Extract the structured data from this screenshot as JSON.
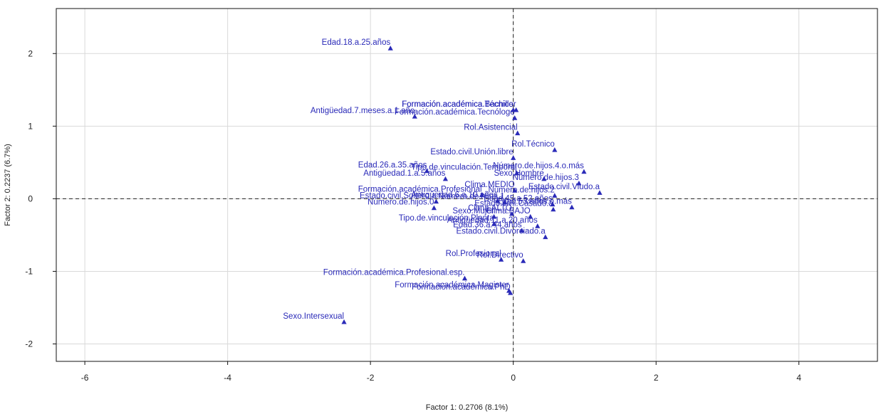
{
  "chart_data": {
    "type": "scatter",
    "xlabel": "Factor 1: 0.2706 (8.1%)",
    "ylabel": "Factor 2: 0.2237 (6.7%)",
    "xlim": [
      -6.4,
      5.1
    ],
    "ylim": [
      -2.24,
      2.62
    ],
    "xticks": [
      -6,
      -4,
      -2,
      0,
      2,
      4
    ],
    "yticks": [
      -2,
      -1,
      0,
      1,
      2
    ],
    "grid": true,
    "reference_lines": {
      "x": 0,
      "y": 0,
      "style": "dashed"
    },
    "marker": "triangle",
    "color": "#2a2ab8",
    "points": [
      {
        "label": "Edad.18.a.25.años",
        "x": -1.72,
        "y": 2.07
      },
      {
        "label": "Antigüedad.7.meses.a.1.año",
        "x": -1.38,
        "y": 1.13
      },
      {
        "label": "Formación.académica.Bachiller",
        "x": 0.04,
        "y": 1.22
      },
      {
        "label": "Formación.académica.Técnico",
        "x": 0.0,
        "y": 1.22
      },
      {
        "label": "Formación.académica.Tecnólogo",
        "x": 0.02,
        "y": 1.11
      },
      {
        "label": "Rol.Asistencial",
        "x": 0.06,
        "y": 0.9
      },
      {
        "label": "Rol.Técnico",
        "x": 0.58,
        "y": 0.67
      },
      {
        "label": "Estado.civil.Unión.libre",
        "x": 0.0,
        "y": 0.56
      },
      {
        "label": "Número.de.hijos.4.o.más",
        "x": 0.99,
        "y": 0.37
      },
      {
        "label": "Edad.26.a.35.años",
        "x": -1.21,
        "y": 0.38
      },
      {
        "label": "Tipo.de.vinculación.Temporal",
        "x": 0.05,
        "y": 0.35
      },
      {
        "label": "Sexo.Hombre",
        "x": 0.43,
        "y": 0.27
      },
      {
        "label": "Antigüedad.1.a.5.años",
        "x": -0.95,
        "y": 0.27
      },
      {
        "label": "Número.de.hijos.3",
        "x": 0.92,
        "y": 0.21
      },
      {
        "label": "Clima.MEDIO",
        "x": 0.02,
        "y": 0.11
      },
      {
        "label": "Estado.civil.Viudo.a",
        "x": 1.21,
        "y": 0.08
      },
      {
        "label": "Formación.académica.Profesional",
        "x": -0.44,
        "y": 0.05
      },
      {
        "label": "Número.de.hijos.2",
        "x": 0.58,
        "y": 0.04
      },
      {
        "label": "Estado.civil.Soltero.a",
        "x": -1.08,
        "y": -0.04
      },
      {
        "label": "Antigüedad.6.a.10.años",
        "x": -0.22,
        "y": -0.03
      },
      {
        "label": "Número.de.hijos.1",
        "x": -0.12,
        "y": -0.05
      },
      {
        "label": "Edad.45.a.52.años",
        "x": 0.55,
        "y": -0.08
      },
      {
        "label": "Edad.53.años.o.más",
        "x": 0.82,
        "y": -0.12
      },
      {
        "label": "Estado.civil.Casado.a",
        "x": 0.56,
        "y": -0.15
      },
      {
        "label": "Número.de.hijos.0",
        "x": -1.11,
        "y": -0.13
      },
      {
        "label": "Clima.ALTO",
        "x": -0.02,
        "y": -0.21
      },
      {
        "label": "Sexo.Mujer",
        "x": -0.27,
        "y": -0.25
      },
      {
        "label": "Clima.BAJO",
        "x": 0.24,
        "y": -0.25
      },
      {
        "label": "Tipo.de.vinculación.Planta",
        "x": -0.27,
        "y": -0.35
      },
      {
        "label": "Antigüedad.11.a.20.años",
        "x": 0.34,
        "y": -0.38
      },
      {
        "label": "Edad.36.a.44.años",
        "x": 0.12,
        "y": -0.44
      },
      {
        "label": "Estado.civil.Divorciado.a",
        "x": 0.45,
        "y": -0.53
      },
      {
        "label": "Rol.Directivo",
        "x": 0.14,
        "y": -0.86
      },
      {
        "label": "Rol.Profesional",
        "x": -0.17,
        "y": -0.84
      },
      {
        "label": "Formación.académica.Profesional.esp.",
        "x": -0.68,
        "y": -1.1
      },
      {
        "label": "Formación.académica.Magister",
        "x": -0.06,
        "y": -1.27
      },
      {
        "label": "Formación.académica.PhD",
        "x": -0.04,
        "y": -1.3
      },
      {
        "label": "Sexo.Intersexual",
        "x": -2.37,
        "y": -1.7
      }
    ]
  }
}
